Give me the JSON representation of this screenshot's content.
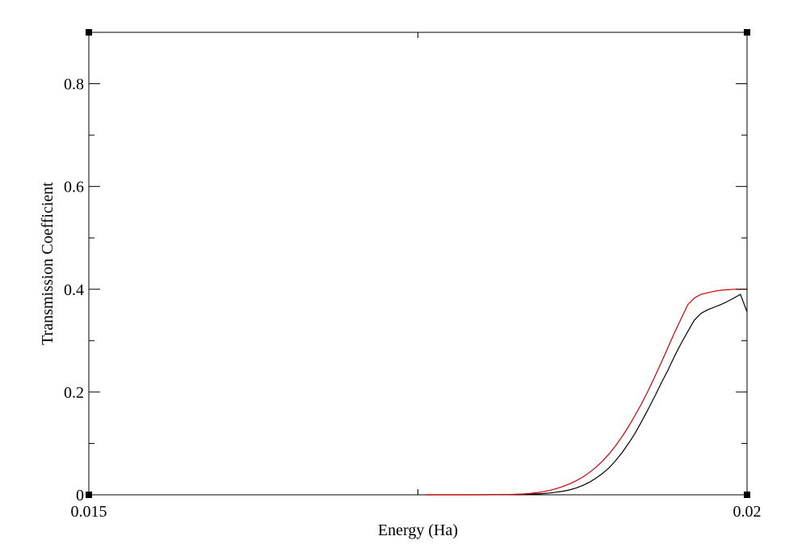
{
  "chart_data": {
    "type": "line",
    "title": "",
    "xlabel": "Energy (Ha)",
    "ylabel": "Transmission Coefficient",
    "xlim": [
      0.015,
      0.02
    ],
    "ylim": [
      0,
      0.9
    ],
    "x_ticks": [
      {
        "value": 0.015,
        "label": "0.015"
      },
      {
        "value": 0.02,
        "label": "0.02"
      }
    ],
    "x_minor_ticks": [
      0.0175
    ],
    "y_ticks": [
      {
        "value": 0,
        "label": "0"
      },
      {
        "value": 0.2,
        "label": "0.2"
      },
      {
        "value": 0.4,
        "label": "0.4"
      },
      {
        "value": 0.6,
        "label": "0.6"
      },
      {
        "value": 0.8,
        "label": "0.8"
      }
    ],
    "y_minor_ticks": [
      0.1,
      0.3,
      0.5,
      0.7
    ],
    "grid": false,
    "legend": "none",
    "series": [
      {
        "color": "#000000",
        "x": [
          0.01756,
          0.0176,
          0.0177,
          0.0178,
          0.0179,
          0.018,
          0.0181,
          0.0182,
          0.0183,
          0.01835,
          0.0184,
          0.01845,
          0.0185,
          0.01855,
          0.0186,
          0.01865,
          0.0187,
          0.01875,
          0.0188,
          0.01885,
          0.0189,
          0.01895,
          0.019,
          0.01905,
          0.0191,
          0.01915,
          0.0192,
          0.01925,
          0.0193,
          0.01935,
          0.0194,
          0.01945,
          0.0195,
          0.01955,
          0.0196,
          0.01965,
          0.0197,
          0.01975,
          0.0198,
          0.01985,
          0.0199,
          0.01995,
          0.02
        ],
        "y": [
          0.0,
          0.0,
          0.0,
          0.0,
          0.0,
          0.0,
          0.0001,
          0.0002,
          0.0006,
          0.001,
          0.0016,
          0.0024,
          0.0035,
          0.005,
          0.007,
          0.0095,
          0.013,
          0.018,
          0.024,
          0.032,
          0.041,
          0.052,
          0.066,
          0.082,
          0.1,
          0.12,
          0.143,
          0.167,
          0.192,
          0.218,
          0.243,
          0.27,
          0.295,
          0.318,
          0.34,
          0.353,
          0.36,
          0.365,
          0.37,
          0.376,
          0.383,
          0.39,
          0.356
        ]
      },
      {
        "color": "#cc0000",
        "x": [
          0.01756,
          0.0176,
          0.0177,
          0.0178,
          0.0179,
          0.018,
          0.0181,
          0.0182,
          0.0183,
          0.01835,
          0.0184,
          0.01845,
          0.0185,
          0.01855,
          0.0186,
          0.01865,
          0.0187,
          0.01875,
          0.0188,
          0.01885,
          0.0189,
          0.01895,
          0.019,
          0.01905,
          0.0191,
          0.01915,
          0.0192,
          0.01925,
          0.0193,
          0.01935,
          0.0194,
          0.01945,
          0.0195,
          0.01955,
          0.0196,
          0.01965,
          0.0197,
          0.01975,
          0.0198,
          0.01985,
          0.0199,
          0.01995,
          0.02
        ],
        "y": [
          0.0,
          0.0,
          0.0,
          0.0,
          0.0,
          0.0001,
          0.0003,
          0.0007,
          0.0015,
          0.0025,
          0.004,
          0.006,
          0.0085,
          0.012,
          0.016,
          0.021,
          0.027,
          0.034,
          0.043,
          0.053,
          0.065,
          0.079,
          0.095,
          0.113,
          0.133,
          0.155,
          0.178,
          0.203,
          0.23,
          0.258,
          0.287,
          0.316,
          0.343,
          0.37,
          0.383,
          0.39,
          0.393,
          0.396,
          0.398,
          0.399,
          0.4,
          0.4,
          0.4
        ]
      }
    ]
  }
}
